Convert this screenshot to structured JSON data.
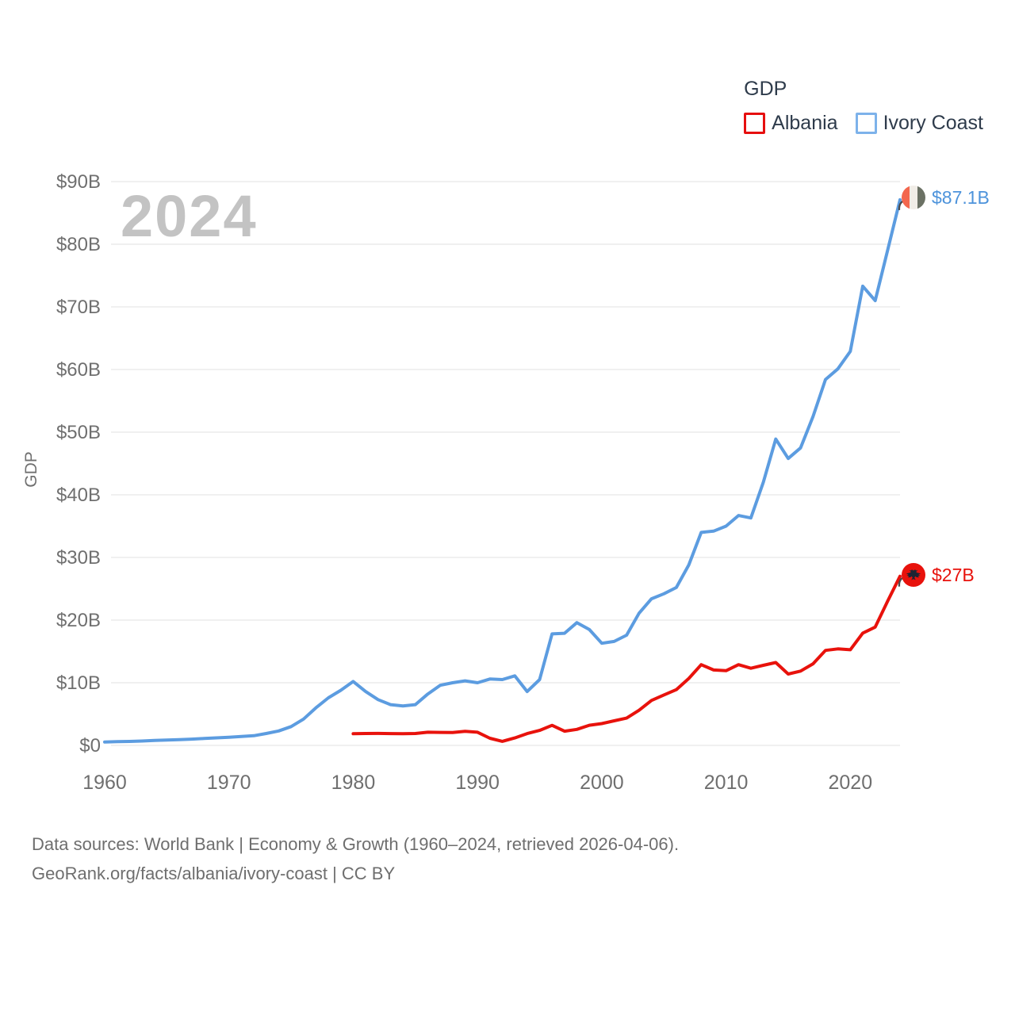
{
  "legend": {
    "title": "GDP",
    "items": [
      {
        "label": "Albania",
        "color": "#e60f0f"
      },
      {
        "label": "Ivory Coast",
        "color": "#5c9ce0"
      }
    ]
  },
  "watermark_year": "2024",
  "end_labels": [
    {
      "series": "Ivory Coast",
      "value_label": "$87.1B",
      "flag": "ivory-coast-flag"
    },
    {
      "series": "Albania",
      "value_label": "$27B",
      "flag": "albania-flag"
    }
  ],
  "footer": {
    "line1": "Data sources: World Bank | Economy & Growth (1960–2024, retrieved 2026-04-06).",
    "line2": "GeoRank.org/facts/albania/ivory-coast | CC BY"
  },
  "chart_data": {
    "type": "line",
    "title": "GDP",
    "ylabel": "GDP",
    "ylim": [
      0,
      90
    ],
    "x_range": [
      1960,
      2024
    ],
    "xticks": [
      1960,
      1970,
      1980,
      1990,
      2000,
      2010,
      2020
    ],
    "ytick_values": [
      0,
      10,
      20,
      30,
      40,
      50,
      60,
      70,
      80,
      90
    ],
    "ytick_labels": [
      "$0",
      "$10B",
      "$20B",
      "$30B",
      "$40B",
      "$50B",
      "$60B",
      "$70B",
      "$80B",
      "$90B"
    ],
    "grid": true,
    "legend_position": "top-right",
    "unit": "billion USD, current",
    "series": [
      {
        "name": "Ivory Coast",
        "color": "#5c9ce0",
        "start_year": 1960,
        "end_value_label": "$87.1B",
        "values": [
          0.55,
          0.6,
          0.63,
          0.7,
          0.8,
          0.85,
          0.92,
          1.0,
          1.1,
          1.2,
          1.3,
          1.42,
          1.55,
          1.9,
          2.3,
          3.0,
          4.2,
          6.0,
          7.6,
          8.8,
          10.2,
          8.6,
          7.3,
          6.5,
          6.3,
          6.5,
          8.2,
          9.6,
          10.0,
          10.3,
          10.0,
          10.6,
          10.5,
          11.1,
          8.6,
          10.5,
          17.8,
          17.9,
          19.6,
          18.5,
          16.3,
          16.6,
          17.6,
          21.1,
          23.4,
          24.2,
          25.2,
          28.8,
          34.0,
          34.2,
          35.0,
          36.7,
          36.3,
          42.0,
          48.9,
          45.8,
          47.5,
          52.5,
          58.4,
          60.1,
          62.9,
          73.3,
          71.0,
          79.0,
          87.1
        ]
      },
      {
        "name": "Albania",
        "color": "#e8120c",
        "start_year": 1980,
        "end_value_label": "$27B",
        "values": [
          1.86,
          1.9,
          1.91,
          1.89,
          1.86,
          1.9,
          2.1,
          2.08,
          2.05,
          2.25,
          2.1,
          1.14,
          0.65,
          1.19,
          1.88,
          2.39,
          3.2,
          2.26,
          2.56,
          3.21,
          3.48,
          3.92,
          4.35,
          5.61,
          7.18,
          8.05,
          8.9,
          10.68,
          12.88,
          12.04,
          11.93,
          12.89,
          12.32,
          12.78,
          13.23,
          11.39,
          11.86,
          13.02,
          15.16,
          15.4,
          15.27,
          17.93,
          18.88,
          23.0,
          27.0
        ]
      }
    ]
  }
}
